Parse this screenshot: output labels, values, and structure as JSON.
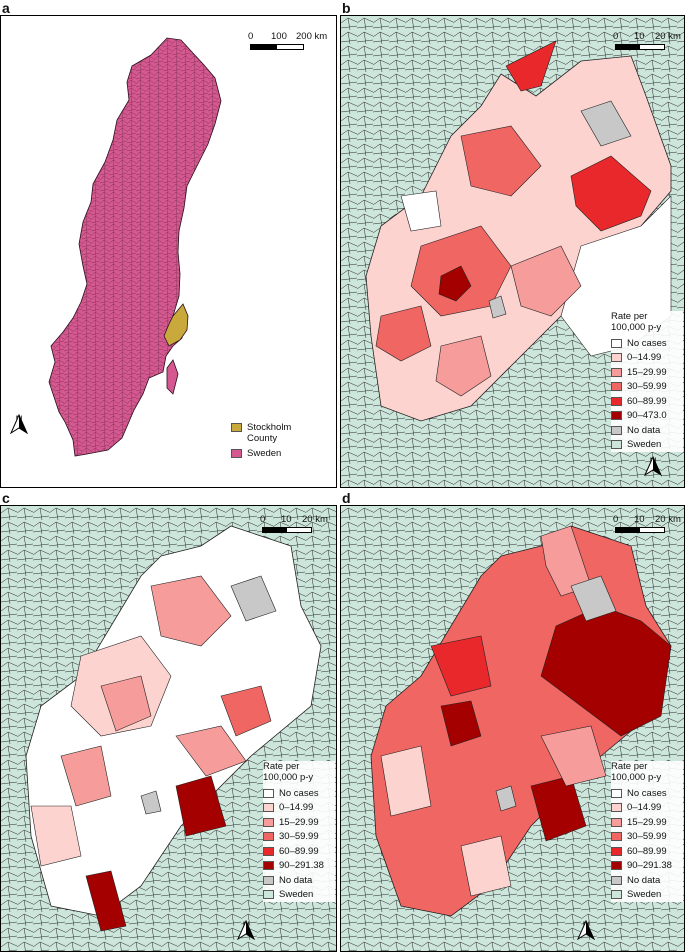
{
  "panels": {
    "a": {
      "label": "a",
      "scale": {
        "ticks": [
          "0",
          "100",
          "200 km"
        ]
      },
      "north": "N",
      "legend": [
        {
          "label": "Stockholm County",
          "color": "#c9a83c"
        },
        {
          "label": "Sweden",
          "color": "#d65891"
        }
      ]
    },
    "b": {
      "label": "b",
      "scale": {
        "ticks": [
          "0",
          "10",
          "20 km"
        ]
      },
      "north": "N",
      "legend_title": "Rate per 100,000 p-y",
      "legend": [
        {
          "label": "No cases",
          "color": "#ffffff"
        },
        {
          "label": "0–14.99",
          "color": "#fcd3cf"
        },
        {
          "label": "15–29.99",
          "color": "#f69c9a"
        },
        {
          "label": "30–59.99",
          "color": "#ef6663"
        },
        {
          "label": "60–89.99",
          "color": "#e8282a"
        },
        {
          "label": "90–473.0",
          "color": "#a40000"
        },
        {
          "label": "No data",
          "color": "#c8c8c8"
        },
        {
          "label": "Sweden",
          "color": "#cde6dc"
        }
      ]
    },
    "c": {
      "label": "c",
      "scale": {
        "ticks": [
          "0",
          "10",
          "20 km"
        ]
      },
      "north": "N",
      "legend_title": "Rate per 100,000 p-y",
      "legend": [
        {
          "label": "No cases",
          "color": "#ffffff"
        },
        {
          "label": "0–14.99",
          "color": "#fcd3cf"
        },
        {
          "label": "15–29.99",
          "color": "#f69c9a"
        },
        {
          "label": "30–59.99",
          "color": "#ef6663"
        },
        {
          "label": "60–89.99",
          "color": "#e8282a"
        },
        {
          "label": "90–291.38",
          "color": "#a40000"
        },
        {
          "label": "No data",
          "color": "#c8c8c8"
        },
        {
          "label": "Sweden",
          "color": "#cde6dc"
        }
      ]
    },
    "d": {
      "label": "d",
      "scale": {
        "ticks": [
          "0",
          "10",
          "20 km"
        ]
      },
      "north": "N",
      "legend_title": "Rate per 100,000 p-y",
      "legend": [
        {
          "label": "No cases",
          "color": "#ffffff"
        },
        {
          "label": "0–14.99",
          "color": "#fcd3cf"
        },
        {
          "label": "15–29.99",
          "color": "#f69c9a"
        },
        {
          "label": "30–59.99",
          "color": "#ef6663"
        },
        {
          "label": "60–89.99",
          "color": "#e8282a"
        },
        {
          "label": "90–291.38",
          "color": "#a40000"
        },
        {
          "label": "No data",
          "color": "#c8c8c8"
        },
        {
          "label": "Sweden",
          "color": "#cde6dc"
        }
      ]
    }
  }
}
